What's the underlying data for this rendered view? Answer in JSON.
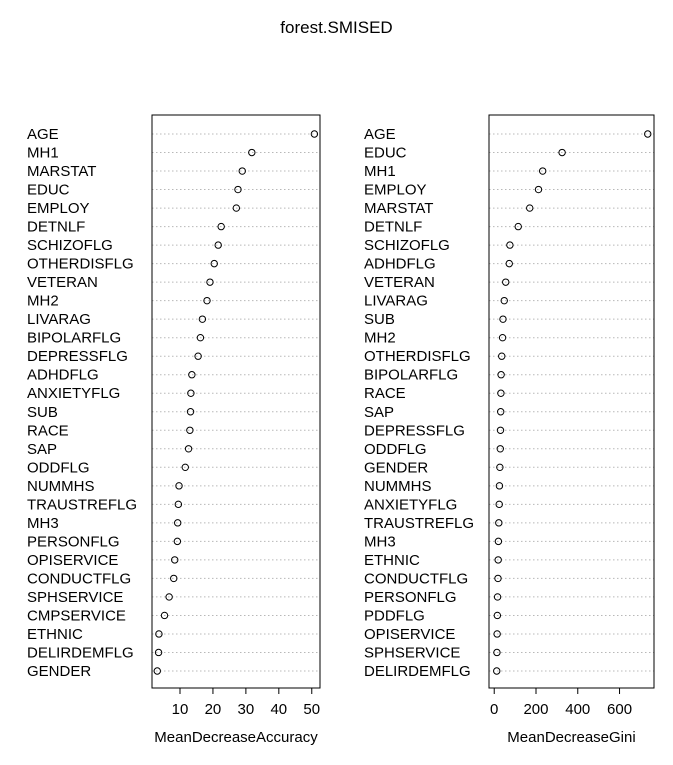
{
  "title": "forest.SMISED",
  "chart_data": [
    {
      "type": "scatter",
      "style": "dotchart",
      "xlabel": "MeanDecreaseAccuracy",
      "ylabel": "",
      "xlim": [
        1.5,
        52.5
      ],
      "xticks": [
        10,
        20,
        30,
        40,
        50
      ],
      "grid": "dotted horizontal",
      "categories": [
        "AGE",
        "MH1",
        "MARSTAT",
        "EDUC",
        "EMPLOY",
        "DETNLF",
        "SCHIZOFLG",
        "OTHERDISFLG",
        "VETERAN",
        "MH2",
        "LIVARAG",
        "BIPOLARFLG",
        "DEPRESSFLG",
        "ADHDFLG",
        "ANXIETYFLG",
        "SUB",
        "RACE",
        "SAP",
        "ODDFLG",
        "NUMMHS",
        "TRAUSTREFLG",
        "MH3",
        "PERSONFLG",
        "OPISERVICE",
        "CONDUCTFLG",
        "SPHSERVICE",
        "CMPSERVICE",
        "ETHNIC",
        "DELIRDEMFLG",
        "GENDER"
      ],
      "values": [
        50.8,
        31.8,
        28.9,
        27.6,
        27.1,
        22.5,
        21.6,
        20.4,
        19.1,
        18.2,
        16.8,
        16.2,
        15.5,
        13.6,
        13.3,
        13.2,
        13.0,
        12.6,
        11.6,
        9.7,
        9.5,
        9.3,
        9.2,
        8.4,
        8.1,
        6.7,
        5.3,
        3.6,
        3.5,
        3.1
      ]
    },
    {
      "type": "scatter",
      "style": "dotchart",
      "xlabel": "MeanDecreaseGini",
      "ylabel": "",
      "xlim": [
        -25,
        765
      ],
      "xticks": [
        0,
        200,
        400,
        600
      ],
      "grid": "dotted horizontal",
      "categories": [
        "AGE",
        "EDUC",
        "MH1",
        "EMPLOY",
        "MARSTAT",
        "DETNLF",
        "SCHIZOFLG",
        "ADHDFLG",
        "VETERAN",
        "LIVARAG",
        "SUB",
        "MH2",
        "OTHERDISFLG",
        "BIPOLARFLG",
        "RACE",
        "SAP",
        "DEPRESSFLG",
        "ODDFLG",
        "GENDER",
        "NUMMHS",
        "ANXIETYFLG",
        "TRAUSTREFLG",
        "MH3",
        "ETHNIC",
        "CONDUCTFLG",
        "PERSONFLG",
        "PDDFLG",
        "OPISERVICE",
        "SPHSERVICE",
        "DELIRDEMFLG"
      ],
      "values": [
        735,
        325,
        232,
        212,
        170,
        115,
        75,
        72,
        55,
        48,
        42,
        40,
        36,
        33,
        32,
        31,
        30,
        29,
        27,
        25,
        24,
        22,
        20,
        19,
        18,
        16,
        15,
        14,
        13,
        12
      ]
    }
  ]
}
